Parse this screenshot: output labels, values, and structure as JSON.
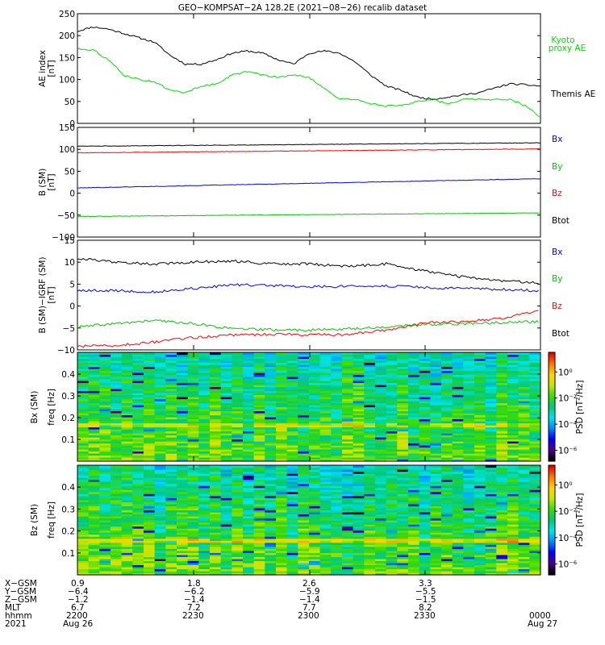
{
  "title": "GEO−KOMPSAT−2A 128.2E (2021−08−26) recalib dataset",
  "colors": {
    "black": "#000000",
    "green": "#00c800",
    "blue": "#0000ff",
    "red": "#ff0000",
    "kyoto": "#00dd00"
  },
  "chart_data": [
    {
      "type": "line",
      "panel": "ae",
      "ylabel_lines": [
        "AE index",
        "[nT]"
      ],
      "ylim": [
        0,
        250
      ],
      "yticks": [
        "0",
        "50",
        "100",
        "150",
        "200",
        "250"
      ],
      "x_range_minutes": [
        0,
        120
      ],
      "series": [
        {
          "name": "Themis AE",
          "color": "#000000",
          "x": [
            0,
            4,
            8,
            12,
            16,
            20,
            24,
            28,
            32,
            36,
            40,
            44,
            48,
            52,
            56,
            60,
            64,
            68,
            72,
            76,
            80,
            84,
            88,
            92,
            96,
            100,
            104,
            108,
            112,
            116,
            120
          ],
          "y": [
            210,
            220,
            215,
            205,
            195,
            185,
            155,
            135,
            135,
            145,
            160,
            165,
            160,
            145,
            135,
            160,
            165,
            160,
            140,
            110,
            85,
            75,
            60,
            55,
            60,
            65,
            70,
            80,
            90,
            88,
            85
          ]
        },
        {
          "name": "Kyoto proxy AE",
          "color": "#00dd00",
          "x": [
            0,
            4,
            8,
            12,
            16,
            20,
            24,
            28,
            32,
            36,
            40,
            44,
            48,
            52,
            56,
            60,
            64,
            68,
            72,
            76,
            80,
            84,
            88,
            92,
            96,
            100,
            104,
            108,
            112,
            116,
            120
          ],
          "y": [
            170,
            168,
            145,
            110,
            100,
            95,
            75,
            70,
            85,
            90,
            110,
            118,
            110,
            105,
            110,
            105,
            80,
            55,
            55,
            45,
            40,
            40,
            50,
            55,
            45,
            55,
            55,
            55,
            55,
            40,
            15
          ]
        }
      ],
      "legend": [
        "Kyoto",
        "proxy AE",
        "Themis AE"
      ]
    },
    {
      "type": "line",
      "panel": "b-sm",
      "ylabel_lines": [
        "B (SM)",
        "[nT]"
      ],
      "ylim": [
        -100,
        150
      ],
      "yticks": [
        "−100",
        "−50",
        "0",
        "50",
        "100",
        "150"
      ],
      "series": [
        {
          "name": "Bx",
          "color": "#0000ff",
          "start": 12,
          "end": 33
        },
        {
          "name": "By",
          "color": "#00c800",
          "start": -53,
          "end": -45
        },
        {
          "name": "Bz",
          "color": "#ff0000",
          "start": 92,
          "end": 101
        },
        {
          "name": "Btot",
          "color": "#000000",
          "start": 107,
          "end": 115
        }
      ],
      "legend": [
        "Bx",
        "By",
        "Bz",
        "Btot"
      ]
    },
    {
      "type": "line",
      "panel": "b-minus-igrf",
      "ylabel_lines": [
        "B (SM)−IGRF (SM)",
        "[nT]"
      ],
      "ylim": [
        -10,
        15
      ],
      "yticks": [
        "−10",
        "−5",
        "0",
        "5",
        "10",
        "15"
      ],
      "series": [
        {
          "name": "Bx",
          "color": "#0000ff",
          "x": [
            0,
            10,
            20,
            30,
            40,
            50,
            60,
            70,
            80,
            90,
            100,
            110,
            120
          ],
          "y": [
            3.5,
            3.5,
            3.2,
            4,
            4.8,
            4.7,
            4.4,
            4.5,
            4.6,
            4.2,
            4,
            3.8,
            3.5
          ]
        },
        {
          "name": "By",
          "color": "#00c800",
          "x": [
            0,
            10,
            20,
            30,
            40,
            50,
            60,
            70,
            80,
            90,
            100,
            110,
            120
          ],
          "y": [
            -4.8,
            -4,
            -3.3,
            -4,
            -5.2,
            -5.4,
            -5.5,
            -5.2,
            -4.8,
            -4.2,
            -4,
            -3.8,
            -3.5
          ]
        },
        {
          "name": "Bz",
          "color": "#ff0000",
          "x": [
            0,
            10,
            20,
            30,
            40,
            50,
            60,
            70,
            80,
            90,
            100,
            110,
            120
          ],
          "y": [
            -9.2,
            -9,
            -8.2,
            -7.2,
            -6.6,
            -6.4,
            -6.6,
            -6.5,
            -5.5,
            -3.8,
            -3.6,
            -2.8,
            -1
          ]
        },
        {
          "name": "Btot",
          "color": "#000000",
          "x": [
            0,
            10,
            20,
            30,
            40,
            50,
            60,
            70,
            80,
            90,
            100,
            110,
            120
          ],
          "y": [
            10.8,
            10,
            9.6,
            10,
            10.3,
            9.6,
            9.6,
            9,
            9.6,
            8,
            6.6,
            5.8,
            5.2
          ]
        }
      ],
      "legend": [
        "Bx",
        "By",
        "Bz",
        "Btot"
      ]
    },
    {
      "type": "heatmap",
      "panel": "bx-spec",
      "ylabel_lines": [
        "Bx (SM)",
        "freq [Hz]"
      ],
      "ylim": [
        0,
        0.5
      ],
      "yticks": [
        "0.1",
        "0.2",
        "0.3",
        "0.4"
      ],
      "colorbar": {
        "label": "PSD [nT²/Hz]",
        "ticks": [
          "10⁰",
          "10⁻²",
          "10⁻⁴",
          "10⁻⁶"
        ]
      }
    },
    {
      "type": "heatmap",
      "panel": "bz-spec",
      "ylabel_lines": [
        "Bz (SM)",
        "freq [Hz]"
      ],
      "ylim": [
        0,
        0.5
      ],
      "yticks": [
        "0.1",
        "0.2",
        "0.3",
        "0.4"
      ],
      "colorbar": {
        "label": "PSD [nT²/Hz]",
        "ticks": [
          "10⁰",
          "10⁻²",
          "10⁻⁴",
          "10⁻⁶"
        ]
      }
    }
  ],
  "x_axis": {
    "row_labels": [
      "X−GSM",
      "Y−GSM",
      "Z−GSM",
      "MLT",
      "hhmm",
      "2021"
    ],
    "columns": [
      {
        "values": [
          "0.9",
          "−6.4",
          "−1.2",
          "6.7",
          "2200",
          "Aug 26"
        ]
      },
      {
        "values": [
          "1.8",
          "−6.2",
          "−1.4",
          "7.2",
          "2230",
          ""
        ]
      },
      {
        "values": [
          "2.6",
          "−5.9",
          "−1.4",
          "7.7",
          "2300",
          ""
        ]
      },
      {
        "values": [
          "3.3",
          "−5.5",
          "−1.5",
          "8.2",
          "2330",
          ""
        ]
      },
      {
        "values": [
          "",
          "",
          "",
          "",
          "0000",
          "Aug 27"
        ]
      }
    ]
  }
}
